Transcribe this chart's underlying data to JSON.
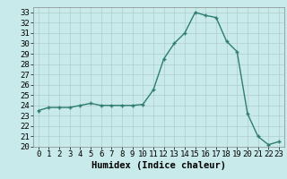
{
  "x": [
    0,
    1,
    2,
    3,
    4,
    5,
    6,
    7,
    8,
    9,
    10,
    11,
    12,
    13,
    14,
    15,
    16,
    17,
    18,
    19,
    20,
    21,
    22,
    23
  ],
  "y": [
    23.5,
    23.8,
    23.8,
    23.8,
    24.0,
    24.2,
    24.0,
    24.0,
    24.0,
    24.0,
    24.1,
    25.5,
    28.5,
    30.0,
    31.0,
    33.0,
    32.7,
    32.5,
    30.2,
    29.2,
    23.2,
    21.0,
    20.2,
    20.5
  ],
  "line_color": "#2e7d6e",
  "marker": "+",
  "marker_color": "#2e7d6e",
  "bg_color": "#c8eaea",
  "grid_color": "#b0cccc",
  "xlabel": "Humidex (Indice chaleur)",
  "ylim": [
    20,
    33.5
  ],
  "xlim": [
    -0.5,
    23.5
  ],
  "yticks": [
    20,
    21,
    22,
    23,
    24,
    25,
    26,
    27,
    28,
    29,
    30,
    31,
    32,
    33
  ],
  "xticks": [
    0,
    1,
    2,
    3,
    4,
    5,
    6,
    7,
    8,
    9,
    10,
    11,
    12,
    13,
    14,
    15,
    16,
    17,
    18,
    19,
    20,
    21,
    22,
    23
  ],
  "xlabel_fontsize": 7.5,
  "tick_fontsize": 6.5,
  "linewidth": 1.0,
  "markersize": 3.5
}
